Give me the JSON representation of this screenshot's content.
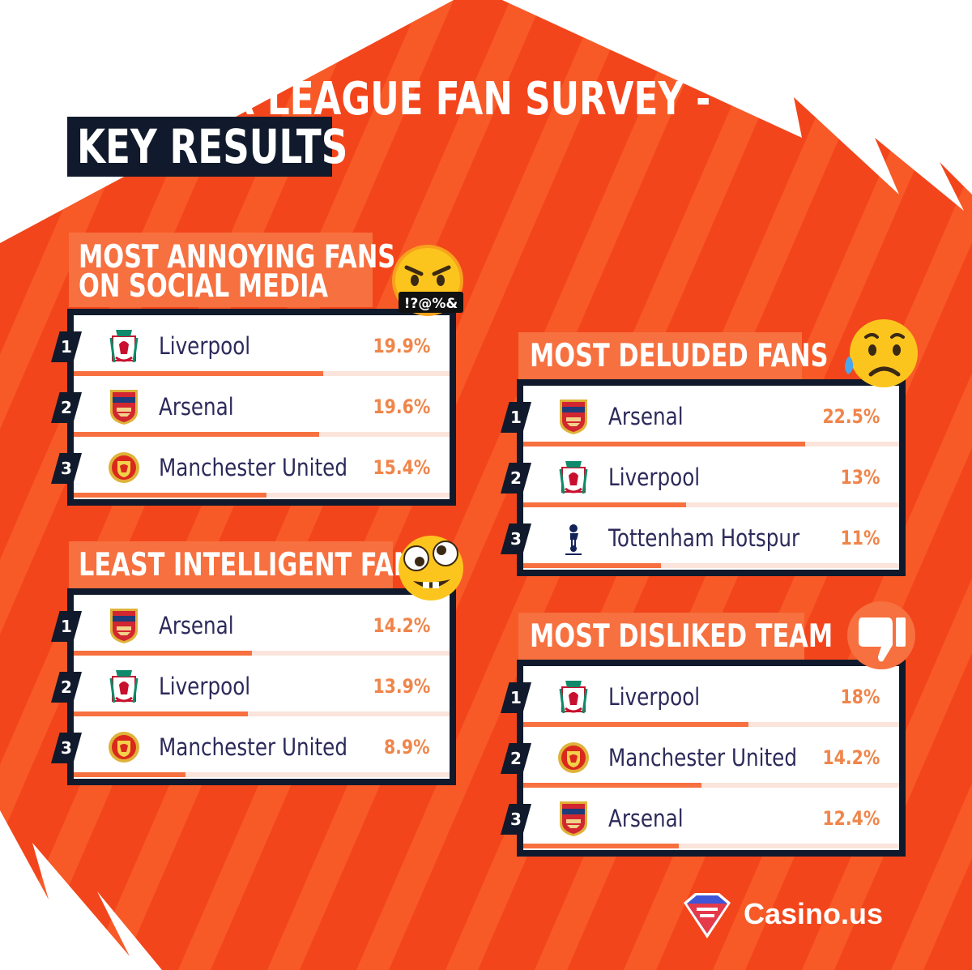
{
  "title": {
    "line1": "PREMIER LEAGUE FAN SURVEY -",
    "line2": "KEY RESULTS"
  },
  "colors": {
    "background": "#f3451b",
    "accent": "#f7703f",
    "navy": "#111a2c",
    "team_text": "#2c2a5a",
    "percent_text": "#f0854a"
  },
  "panels": [
    {
      "title_line1": "MOST ANNOYING FANS",
      "title_line2": "ON SOCIAL MEDIA",
      "emoji_icon": "swearing-face-icon",
      "emoji_caption": "!?@%&",
      "rows": [
        {
          "rank": "1",
          "team": "Liverpool",
          "crest": "liverpool-crest-icon",
          "percent": "19.9%",
          "value": 19.9
        },
        {
          "rank": "2",
          "team": "Arsenal",
          "crest": "arsenal-crest-icon",
          "percent": "19.6%",
          "value": 19.6
        },
        {
          "rank": "3",
          "team": "Manchester United",
          "crest": "manchester-united-crest-icon",
          "percent": "15.4%",
          "value": 15.4
        }
      ]
    },
    {
      "title_line1": "LEAST INTELLIGENT FANS",
      "title_line2": "",
      "emoji_icon": "zany-face-icon",
      "emoji_caption": "",
      "rows": [
        {
          "rank": "1",
          "team": "Arsenal",
          "crest": "arsenal-crest-icon",
          "percent": "14.2%",
          "value": 14.2
        },
        {
          "rank": "2",
          "team": "Liverpool",
          "crest": "liverpool-crest-icon",
          "percent": "13.9%",
          "value": 13.9
        },
        {
          "rank": "3",
          "team": "Manchester United",
          "crest": "manchester-united-crest-icon",
          "percent": "8.9%",
          "value": 8.9
        }
      ]
    },
    {
      "title_line1": "MOST DELUDED FANS",
      "title_line2": "",
      "emoji_icon": "sad-sweat-face-icon",
      "emoji_caption": "",
      "rows": [
        {
          "rank": "1",
          "team": "Arsenal",
          "crest": "arsenal-crest-icon",
          "percent": "22.5%",
          "value": 22.5
        },
        {
          "rank": "2",
          "team": "Liverpool",
          "crest": "liverpool-crest-icon",
          "percent": "13%",
          "value": 13
        },
        {
          "rank": "3",
          "team": "Tottenham Hotspur",
          "crest": "tottenham-crest-icon",
          "percent": "11%",
          "value": 11
        }
      ]
    },
    {
      "title_line1": "MOST DISLIKED TEAM",
      "title_line2": "",
      "emoji_icon": "thumbs-down-icon",
      "emoji_caption": "",
      "rows": [
        {
          "rank": "1",
          "team": "Liverpool",
          "crest": "liverpool-crest-icon",
          "percent": "18%",
          "value": 18
        },
        {
          "rank": "2",
          "team": "Manchester United",
          "crest": "manchester-united-crest-icon",
          "percent": "14.2%",
          "value": 14.2
        },
        {
          "rank": "3",
          "team": "Arsenal",
          "crest": "arsenal-crest-icon",
          "percent": "12.4%",
          "value": 12.4
        }
      ]
    }
  ],
  "brand": {
    "name": "Casino.us",
    "logo_icon": "casino-diamond-logo-icon"
  }
}
